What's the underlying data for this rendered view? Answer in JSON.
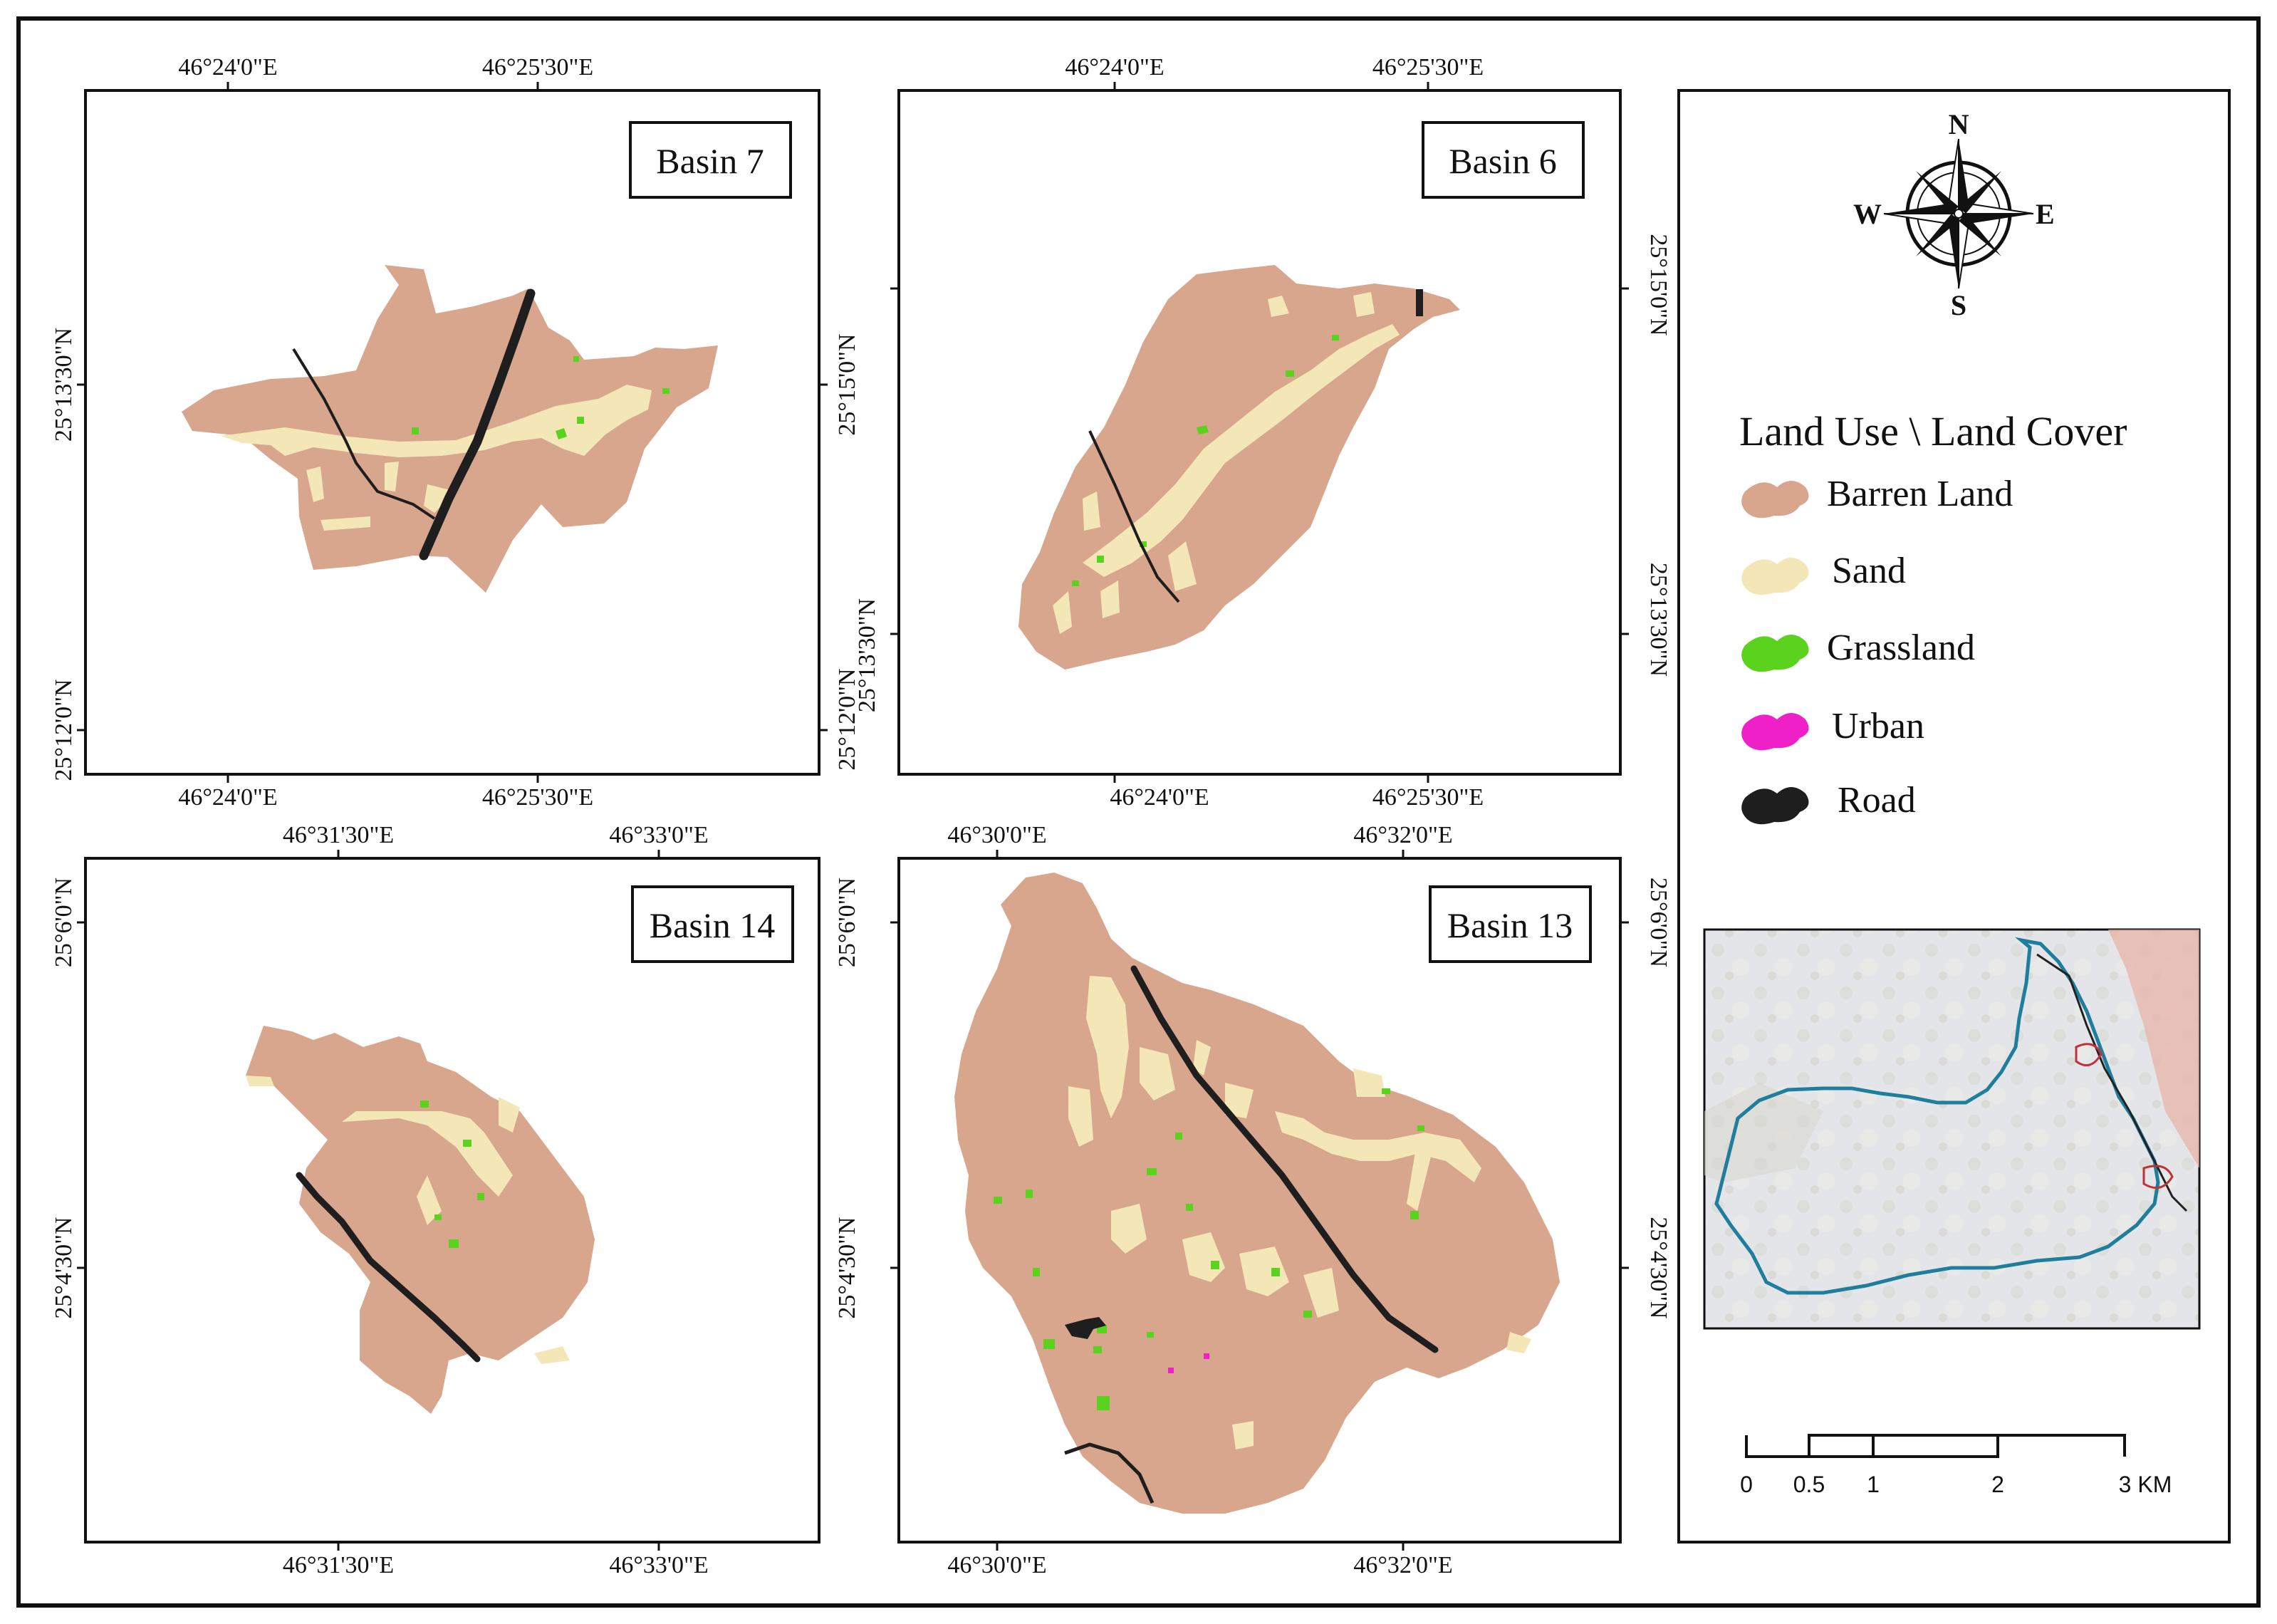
{
  "colors": {
    "barren": "#d8a58d",
    "sand": "#f4e7b7",
    "grass": "#5ad21e",
    "urban": "#f020c8",
    "road": "#1e1e1e",
    "frame": "#111111",
    "inset_basin_outline": "#1e7e9c",
    "inset_background": "#e4e6ea"
  },
  "panels": {
    "basin7": {
      "title": "Basin 7",
      "top_ticks": [
        "46°24'0\"E",
        "46°25'30\"E"
      ],
      "bottom_ticks": [
        "46°24'0\"E",
        "46°25'30\"E"
      ],
      "left_ticks": [
        "25°13'30\"N",
        "25°12'0\"N"
      ]
    },
    "basin6": {
      "title": "Basin 6",
      "top_ticks": [
        "46°24'0\"E",
        "46°25'30\"E"
      ],
      "bottom_ticks": [
        "46°24'0\"E",
        "46°25'30\"E"
      ],
      "left_ticks": [
        "25°15'0\"N",
        "25°13'30\"N",
        "25°12'0\"N"
      ],
      "right_ticks": [
        "25°15'0\"N",
        "25°13'30\"N"
      ]
    },
    "basin14": {
      "title": "Basin 14",
      "top_ticks": [
        "46°31'30\"E",
        "46°33'0\"E"
      ],
      "bottom_ticks": [
        "46°31'30\"E",
        "46°33'0\"E"
      ],
      "left_ticks": [
        "25°6'0\"N",
        "25°4'30\"N"
      ]
    },
    "basin13": {
      "title": "Basin 13",
      "top_ticks": [
        "46°30'0\"E",
        "46°32'0\"E"
      ],
      "bottom_ticks": [
        "46°30'0\"E",
        "46°32'0\"E"
      ],
      "left_ticks": [
        "25°6'0\"N",
        "25°4'30\"N"
      ],
      "right_ticks": [
        "25°6'0\"N",
        "25°4'30\"N"
      ]
    }
  },
  "compass": {
    "north": "N",
    "south": "S",
    "east": "E",
    "west": "W"
  },
  "legend": {
    "title": "Land Use \\ Land Cover",
    "items": [
      {
        "label": "Barren Land",
        "color_key": "barren"
      },
      {
        "label": "Sand",
        "color_key": "sand"
      },
      {
        "label": "Grassland",
        "color_key": "grass"
      },
      {
        "label": "Urban",
        "color_key": "urban"
      },
      {
        "label": "Road",
        "color_key": "road"
      }
    ]
  },
  "scale_bar": {
    "labels": [
      "0",
      "0.5",
      "1",
      "2",
      "3 KM"
    ]
  }
}
